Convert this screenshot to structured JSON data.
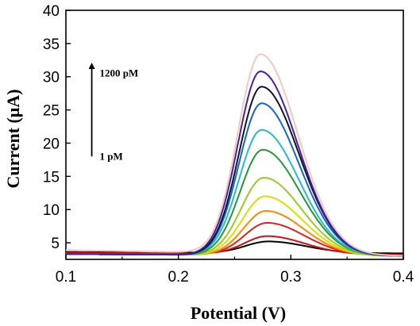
{
  "chart_data": {
    "type": "line",
    "xlabel": "Potential (V)",
    "ylabel": "Current (μA)",
    "xlim": [
      0.1,
      0.4
    ],
    "ylim": [
      2.5,
      40
    ],
    "x_ticks": [
      "0.1",
      "0.2",
      "0.3",
      "0.4"
    ],
    "y_ticks": [
      "5",
      "10",
      "15",
      "20",
      "25",
      "30",
      "35",
      "40"
    ],
    "grid": false,
    "annotations": [
      {
        "text": "1200 pM",
        "x": 0.13,
        "y": 30
      },
      {
        "text": "1 pM",
        "x": 0.13,
        "y": 17.5
      }
    ],
    "arrow": {
      "x": 0.123,
      "y_start": 18,
      "y_end": 32
    },
    "series": [
      {
        "color": "#000000",
        "peak": 5.2,
        "base_left": 3.6,
        "tail_right": 3.4,
        "peak_x": 0.28
      },
      {
        "color": "#cc1111",
        "peak": 6.0,
        "base_left": 3.5,
        "tail_right": 3.2,
        "peak_x": 0.279
      },
      {
        "color": "#dd2222",
        "peak": 8.0,
        "base_left": 3.4,
        "tail_right": 3.1,
        "peak_x": 0.279
      },
      {
        "color": "#ff8800",
        "peak": 9.8,
        "base_left": 3.3,
        "tail_right": 3.0,
        "peak_x": 0.278
      },
      {
        "color": "#dddd00",
        "peak": 12.0,
        "base_left": 3.3,
        "tail_right": 3.0,
        "peak_x": 0.277
      },
      {
        "color": "#99cc22",
        "peak": 14.8,
        "base_left": 3.3,
        "tail_right": 3.0,
        "peak_x": 0.276
      },
      {
        "color": "#229933",
        "peak": 19.0,
        "base_left": 3.3,
        "tail_right": 3.0,
        "peak_x": 0.275
      },
      {
        "color": "#22bbcc",
        "peak": 22.0,
        "base_left": 3.3,
        "tail_right": 3.0,
        "peak_x": 0.274
      },
      {
        "color": "#1166cc",
        "peak": 26.0,
        "base_left": 3.3,
        "tail_right": 3.0,
        "peak_x": 0.274
      },
      {
        "color": "#111133",
        "peak": 28.5,
        "base_left": 3.3,
        "tail_right": 3.0,
        "peak_x": 0.274
      },
      {
        "color": "#442299",
        "peak": 30.8,
        "base_left": 3.3,
        "tail_right": 3.0,
        "peak_x": 0.273
      },
      {
        "color": "#f0c8c0",
        "peak": 33.4,
        "base_left": 3.9,
        "tail_right": 3.0,
        "peak_x": 0.273
      }
    ]
  }
}
